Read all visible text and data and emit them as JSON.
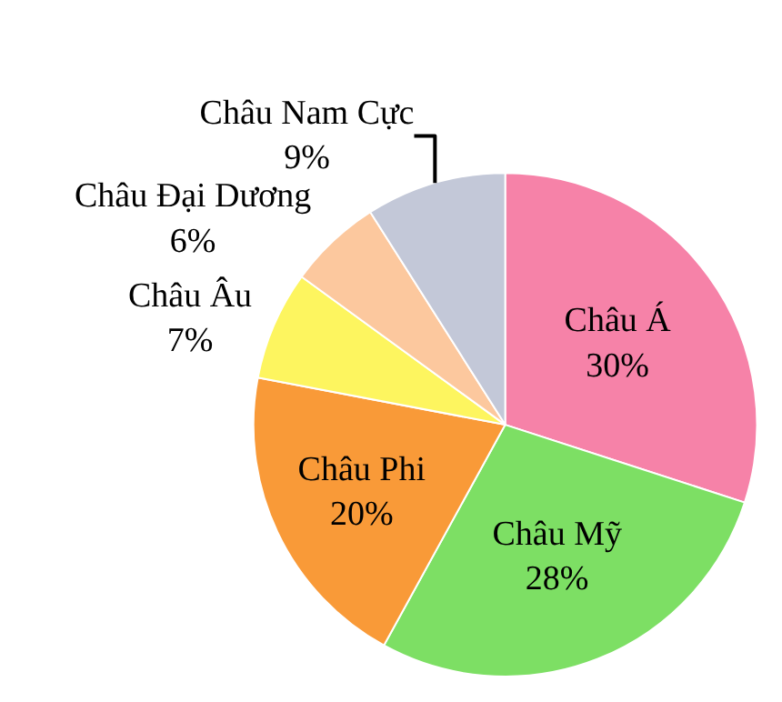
{
  "chart_data": {
    "type": "pie",
    "categories": [
      "Châu Á",
      "Châu Mỹ",
      "Châu Phi",
      "Châu Âu",
      "Châu Đại Dương",
      "Châu Nam Cực"
    ],
    "values": [
      30,
      28,
      20,
      7,
      6,
      9
    ],
    "value_labels": [
      "30%",
      "28%",
      "20%",
      "7%",
      "6%",
      "9%"
    ],
    "colors": [
      "#f682a8",
      "#7ddf64",
      "#f99a38",
      "#fdf55f",
      "#fcc89e",
      "#c3c8d8"
    ],
    "legend": false
  }
}
